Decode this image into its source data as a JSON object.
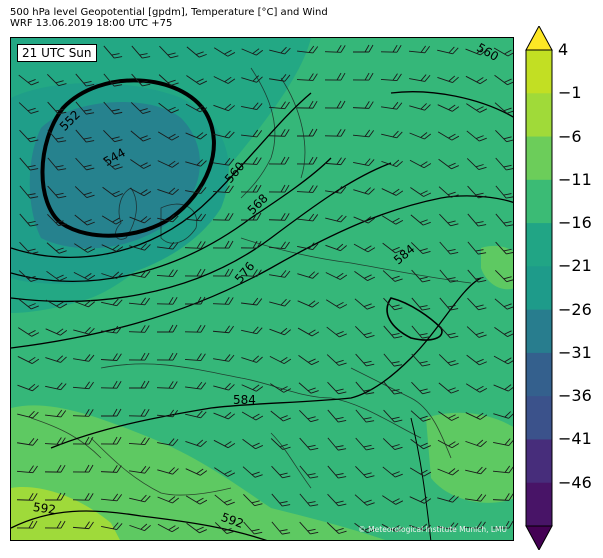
{
  "title": {
    "line1": "500 hPa level Geopotential [gpdm], Temperature [°C] and Wind",
    "line2": "WRF 13.06.2019 18:00 UTC +75"
  },
  "map": {
    "valid_time": "21 UTC Sun",
    "credit": "© Meteorological Institute Munich, LMU",
    "contour_labels": [
      "552",
      "544",
      "560",
      "568",
      "576",
      "584",
      "584",
      "592",
      "592",
      "560"
    ]
  },
  "colorbar": {
    "ticks": [
      "4",
      "−1",
      "−6",
      "−11",
      "−16",
      "−21",
      "−26",
      "−31",
      "−36",
      "−41",
      "−46"
    ],
    "colors": [
      "#fde725",
      "#c2df23",
      "#a0da39",
      "#6ccd5a",
      "#3bbb75",
      "#21a585",
      "#1e9b8a",
      "#287d8e",
      "#34608d",
      "#3b528b",
      "#472d7b",
      "#481467",
      "#440154"
    ],
    "unit": "°C"
  }
}
